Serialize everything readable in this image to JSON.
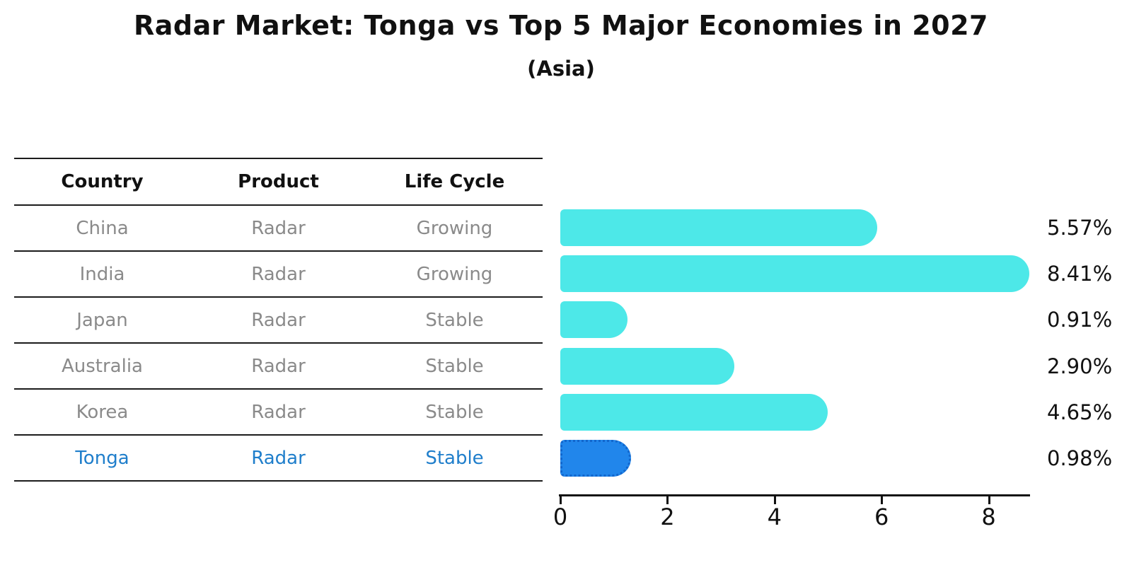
{
  "title": "Radar Market: Tonga vs Top 5 Major Economies in 2027",
  "subtitle": "(Asia)",
  "table": {
    "headers": {
      "country": "Country",
      "product": "Product",
      "life_cycle": "Life Cycle"
    },
    "rows": [
      {
        "country": "China",
        "product": "Radar",
        "life_cycle": "Growing",
        "highlight": false
      },
      {
        "country": "India",
        "product": "Radar",
        "life_cycle": "Growing",
        "highlight": false
      },
      {
        "country": "Japan",
        "product": "Radar",
        "life_cycle": "Stable",
        "highlight": false
      },
      {
        "country": "Australia",
        "product": "Radar",
        "life_cycle": "Stable",
        "highlight": false
      },
      {
        "country": "Korea",
        "product": "Radar",
        "life_cycle": "Stable",
        "highlight": false
      },
      {
        "country": "Tonga",
        "product": "Radar",
        "life_cycle": "Stable",
        "highlight": true
      }
    ]
  },
  "chart_data": {
    "type": "bar",
    "orientation": "horizontal",
    "categories": [
      "China",
      "India",
      "Japan",
      "Australia",
      "Korea",
      "Tonga"
    ],
    "values": [
      5.57,
      8.41,
      0.91,
      2.9,
      4.65,
      0.98
    ],
    "value_labels": [
      "5.57%",
      "8.41%",
      "0.91%",
      "2.90%",
      "4.65%",
      "0.98%"
    ],
    "xticks": [
      0,
      2,
      4,
      6,
      8
    ],
    "xlim": [
      0,
      8.75
    ],
    "grid": false,
    "legend": false,
    "bar_color": "#4de8e8",
    "highlight_color": "#2186eb",
    "highlight_border_color": "#1266cc",
    "highlight_index": 5,
    "highlight_text_color": "#1f7ecb",
    "text_color": "#111111",
    "muted_text_color": "#8a8a8a"
  }
}
